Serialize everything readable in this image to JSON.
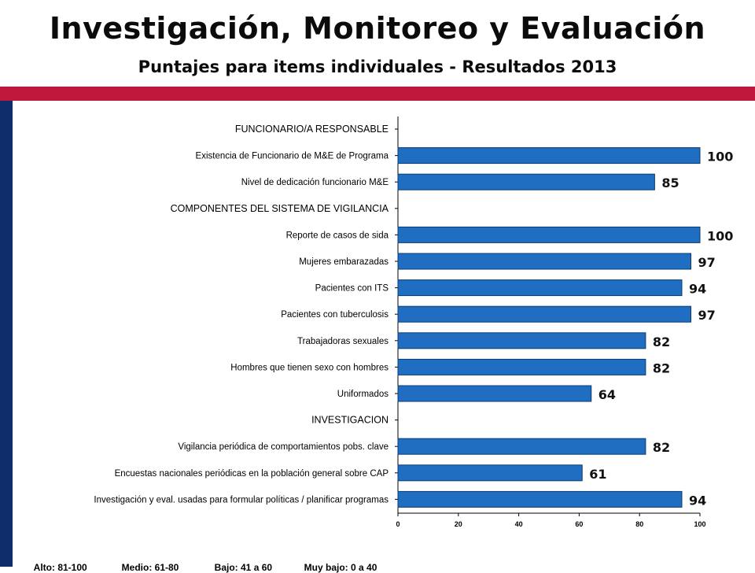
{
  "header": {
    "title": "Investigación, Monitoreo y Evaluación",
    "subtitle": "Puntajes para items individuales - Resultados 2013"
  },
  "colors": {
    "accent_red": "#c0173c",
    "side_navy": "#0f2d6b",
    "bar_fill": "#1f6ec2",
    "bar_stroke": "#0b3b70"
  },
  "chart_data": {
    "type": "bar",
    "orientation": "horizontal",
    "xlim": [
      0,
      100
    ],
    "xticks": [
      "0",
      "20",
      "40",
      "60",
      "80",
      "100"
    ],
    "rows": [
      {
        "label": "FUNCIONARIO/A RESPONSABLE",
        "section": true
      },
      {
        "label": "Existencia de Funcionario de M&E de Programa",
        "value": 100
      },
      {
        "label": "Nivel de dedicación funcionario M&E",
        "value": 85
      },
      {
        "label": "COMPONENTES DEL SISTEMA DE VIGILANCIA",
        "section": true
      },
      {
        "label": "Reporte de casos de sida",
        "value": 100
      },
      {
        "label": "Mujeres embarazadas",
        "value": 97
      },
      {
        "label": "Pacientes con ITS",
        "value": 94
      },
      {
        "label": "Pacientes con tuberculosis",
        "value": 97
      },
      {
        "label": "Trabajadoras sexuales",
        "value": 82
      },
      {
        "label": "Hombres que tienen sexo con hombres",
        "value": 82
      },
      {
        "label": "Uniformados",
        "value": 64
      },
      {
        "label": "INVESTIGACION",
        "section": true
      },
      {
        "label": "Vigilancia periódica de comportamientos pobs. clave",
        "value": 82
      },
      {
        "label": "Encuestas nacionales periódicas en la población general sobre CAP",
        "value": 61
      },
      {
        "label": "Investigación y eval. usadas para formular políticas / planificar programas",
        "value": 94
      }
    ]
  },
  "legend": {
    "alto": "Alto: 81-100",
    "medio": "Medio: 61-80",
    "bajo": "Bajo: 41 a 60",
    "muy_bajo": "Muy bajo: 0 a 40"
  }
}
